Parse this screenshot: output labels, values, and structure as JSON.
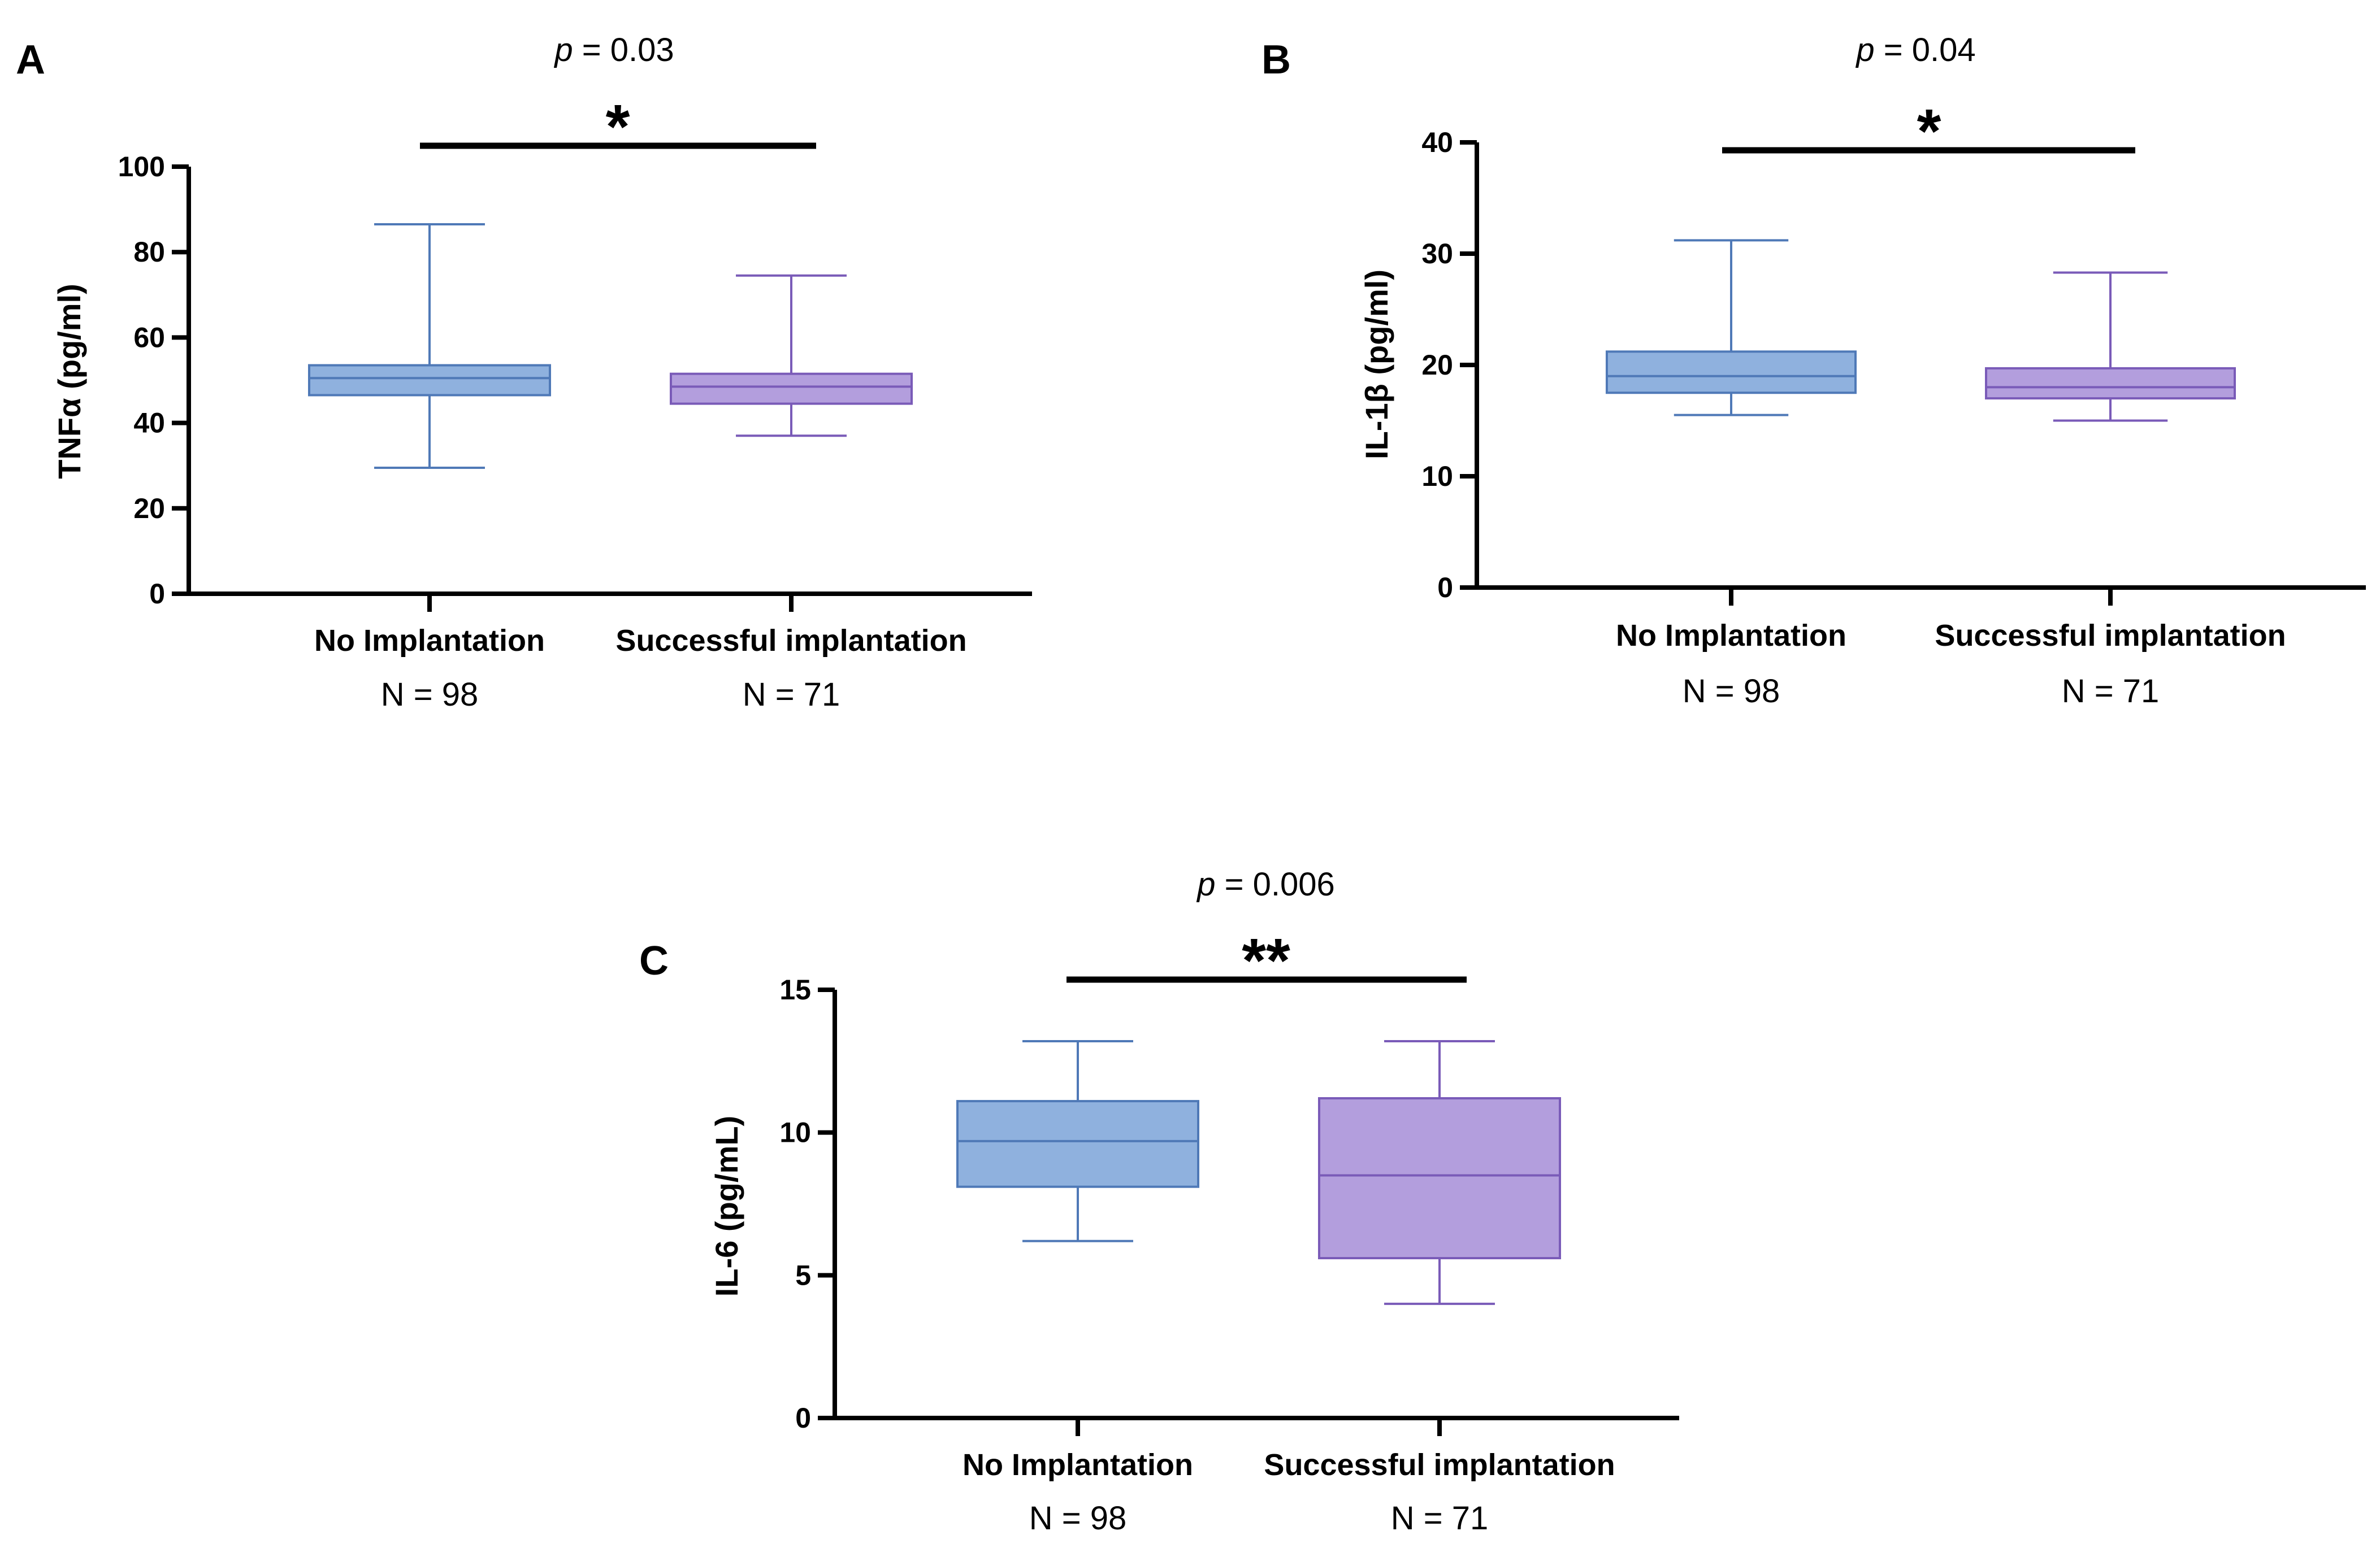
{
  "colors": {
    "no_implantation_fill": "#8FB1DE",
    "no_implantation_stroke": "#4F79B7",
    "successful_fill": "#B39EDD",
    "successful_stroke": "#7A5BB8"
  },
  "chart_data": [
    {
      "type": "box",
      "panel": "A",
      "ylabel": "TNFα  (pg/ml)",
      "ylim": [
        0,
        100
      ],
      "yticks": [
        0,
        20,
        40,
        60,
        80,
        100
      ],
      "categories": [
        "No Implantation",
        "Successful implantation"
      ],
      "n_labels": [
        "N = 98",
        "N = 71"
      ],
      "boxes": [
        {
          "name": "No Implantation",
          "min": 29.5,
          "q1": 46.5,
          "median": 50.5,
          "q3": 53.5,
          "max": 86.5
        },
        {
          "name": "Successful implantation",
          "min": 37,
          "q1": 44.5,
          "median": 48.5,
          "q3": 51.5,
          "max": 74.5
        }
      ],
      "p_value": "p = 0.03",
      "significance": "*"
    },
    {
      "type": "box",
      "panel": "B",
      "ylabel": "IL-1β (pg/ml)",
      "ylim": [
        0,
        40
      ],
      "yticks": [
        0,
        10,
        20,
        30,
        40
      ],
      "categories": [
        "No Implantation",
        "Successful implantation"
      ],
      "n_labels": [
        "N = 98",
        "N = 71"
      ],
      "boxes": [
        {
          "name": "No Implantation",
          "min": 15.5,
          "q1": 17.5,
          "median": 19,
          "q3": 21.2,
          "max": 31.2
        },
        {
          "name": "Successful implantation",
          "min": 15,
          "q1": 17,
          "median": 18,
          "q3": 19.7,
          "max": 28.3
        }
      ],
      "p_value": "p = 0.04",
      "significance": "*"
    },
    {
      "type": "box",
      "panel": "C",
      "ylabel": "IL-6  (pg/mL)",
      "ylim": [
        0,
        15
      ],
      "yticks": [
        0,
        5,
        10,
        15
      ],
      "categories": [
        "No Implantation",
        "Successful implantation"
      ],
      "n_labels": [
        "N = 98",
        "N = 71"
      ],
      "boxes": [
        {
          "name": "No Implantation",
          "min": 6.2,
          "q1": 8.1,
          "median": 9.7,
          "q3": 11.1,
          "max": 13.2
        },
        {
          "name": "Successful implantation",
          "min": 4,
          "q1": 5.6,
          "median": 8.5,
          "q3": 11.2,
          "max": 13.2
        }
      ],
      "p_value": "p = 0.006",
      "significance": "**"
    }
  ]
}
